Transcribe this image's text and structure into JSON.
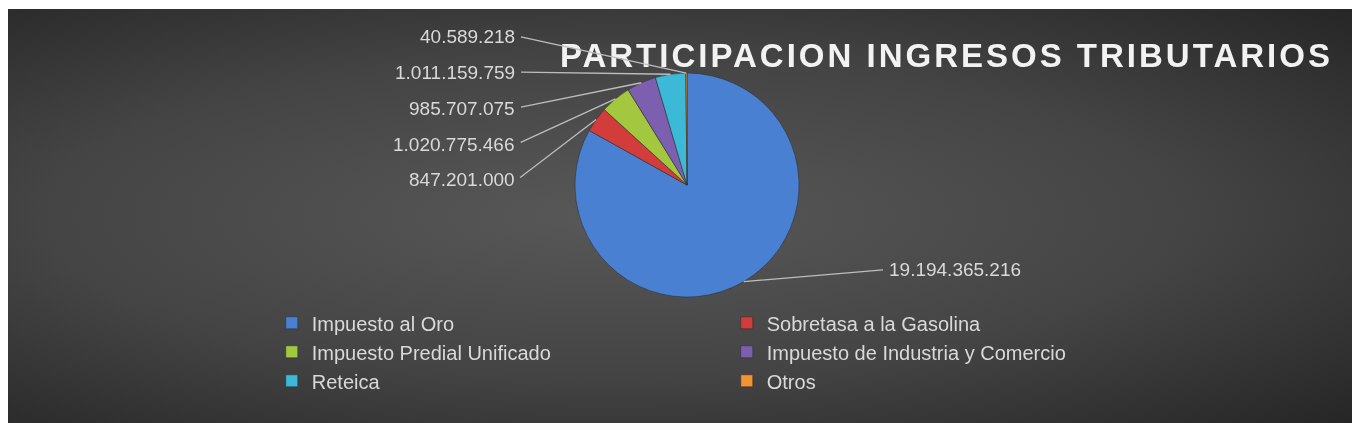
{
  "chart_data": {
    "type": "pie",
    "title": "PARTICIPACION INGRESOS TRIBUTARIOS",
    "categories": [
      "Impuesto al Oro",
      "Sobretasa a la Gasolina",
      "Impuesto Predial Unificado",
      "Impuesto de Industria y Comercio",
      "Reteica",
      "Otros"
    ],
    "values": [
      19194365216,
      847201000,
      1020775466,
      985707075,
      1011159759,
      40589218
    ],
    "colors": [
      "#4a80d2",
      "#d23c3a",
      "#a3c73e",
      "#7d5fb0",
      "#3cb9d6",
      "#f39433"
    ],
    "value_labels": [
      "19.194.365.216",
      "847.201.000",
      "1.020.775.466",
      "985.707.075",
      "1.011.159.759",
      "40.589.218"
    ],
    "legend": "bottom"
  }
}
